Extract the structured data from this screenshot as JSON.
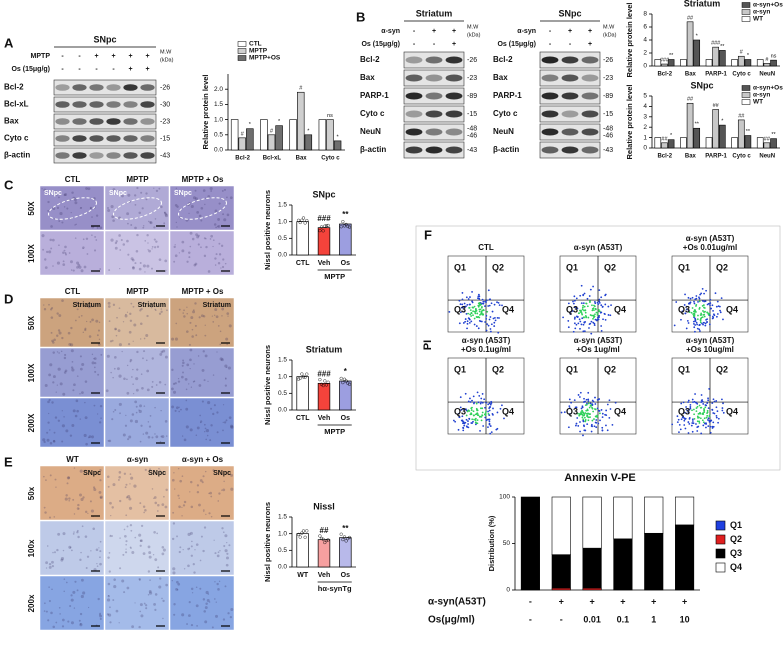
{
  "figure": {
    "panel_labels": [
      "A",
      "B",
      "C",
      "D",
      "E",
      "F"
    ],
    "blot_a": {
      "title": "SNpc",
      "conditions": [
        {
          "label": "MPTP",
          "signs": [
            "-",
            "-",
            "+",
            "+",
            "+",
            "+"
          ]
        },
        {
          "label": "Os (15μg/g)",
          "signs": [
            "-",
            "-",
            "-",
            "-",
            "+",
            "+"
          ]
        }
      ],
      "mw_header": [
        "M.W",
        "(kDa)"
      ],
      "bands": [
        {
          "label": "Bcl-2",
          "mw": [
            "-26"
          ]
        },
        {
          "label": "Bcl-xL",
          "mw": [
            "-30"
          ]
        },
        {
          "label": "Bax",
          "mw": [
            "-23"
          ]
        },
        {
          "label": "Cyto c",
          "mw": [
            "-15"
          ]
        },
        {
          "label": "β-actin",
          "mw": [
            "-43"
          ]
        }
      ]
    },
    "blot_b": [
      {
        "title": "Striatum",
        "conditions": [
          {
            "label": "α-syn",
            "signs": [
              "-",
              "+",
              "+"
            ]
          },
          {
            "label": "Os (15μg/g)",
            "signs": [
              "-",
              "-",
              "+"
            ]
          }
        ],
        "mw_header": [
          "M.W",
          "(kDa)"
        ],
        "bands": [
          {
            "label": "Bcl-2",
            "mw": [
              "-26"
            ]
          },
          {
            "label": "Bax",
            "mw": [
              "-23"
            ]
          },
          {
            "label": "PARP-1",
            "mw": [
              "-89"
            ]
          },
          {
            "label": "Cyto c",
            "mw": [
              "-15"
            ]
          },
          {
            "label": "NeuN",
            "mw": [
              "-48",
              "-46"
            ]
          },
          {
            "label": "β-actin",
            "mw": [
              "-43"
            ]
          }
        ]
      },
      {
        "title": "SNpc",
        "conditions": [
          {
            "label": "α-syn",
            "signs": [
              "-",
              "+",
              "+"
            ]
          },
          {
            "label": "Os (15μg/g)",
            "signs": [
              "-",
              "-",
              "+"
            ]
          }
        ],
        "mw_header": [
          "M.W",
          "(kDa)"
        ],
        "bands": [
          {
            "label": "Bcl-2",
            "mw": [
              "-26"
            ]
          },
          {
            "label": "Bax",
            "mw": [
              "-23"
            ]
          },
          {
            "label": "PARP-1",
            "mw": [
              "-89"
            ]
          },
          {
            "label": "Cyto c",
            "mw": [
              "-15"
            ]
          },
          {
            "label": "NeuN",
            "mw": [
              "-48",
              "-46"
            ]
          },
          {
            "label": "β-actin",
            "mw": [
              "-43"
            ]
          }
        ]
      }
    ],
    "micro": [
      {
        "columns": [
          "CTL",
          "MPTP",
          "MPTP + Os"
        ],
        "rows": [
          "50X",
          "100X"
        ],
        "region": "SNpc"
      },
      {
        "columns": [
          "CTL",
          "MPTP",
          "MPTP + Os"
        ],
        "rows": [
          "50X",
          "100X",
          "200X"
        ],
        "region": "Striatum"
      },
      {
        "columns": [
          "WT",
          "α-syn",
          "α-syn + Os"
        ],
        "rows": [
          "50x",
          "100x",
          "200x"
        ],
        "region": "SNpc"
      }
    ],
    "flow": {
      "y_label": "PI",
      "x_label": "Annexin V-PE",
      "quadrants": [
        "Q1",
        "Q2",
        "Q3",
        "Q4"
      ],
      "plots": [
        [
          "CTL"
        ],
        [
          "α-syn (A53T)"
        ],
        [
          "α-syn (A53T)",
          "+Os 0.01ug/ml"
        ],
        [
          "α-syn (A53T)",
          "+Os 0.1ug/ml"
        ],
        [
          "α-syn (A53T)",
          "+Os 1ug/ml"
        ],
        [
          "α-syn (A53T)",
          "+Os 10ug/ml"
        ]
      ]
    }
  },
  "chart_data": [
    {
      "type": "bar",
      "y_label": "Relative protein level",
      "categories": [
        "Bcl-2",
        "Bcl-xL",
        "Bax",
        "Cyto c"
      ],
      "series": [
        {
          "name": "CTL",
          "color": "#ffffff",
          "values": [
            1.0,
            1.0,
            1.0,
            1.0
          ],
          "sig": [
            null,
            null,
            null,
            null
          ]
        },
        {
          "name": "MPTP",
          "color": "#cfcfcf",
          "values": [
            0.4,
            0.5,
            1.9,
            1.0
          ],
          "sig": [
            "#",
            "#",
            "#",
            "ns"
          ]
        },
        {
          "name": "MPTP+OS",
          "color": "#6e6e6e",
          "values": [
            0.7,
            0.8,
            0.5,
            0.3
          ],
          "sig": [
            "*",
            "*",
            "*",
            "*"
          ]
        }
      ],
      "ylim": [
        0,
        2.5
      ],
      "yticks": [
        {
          "value": 0,
          "label": "0.0"
        },
        {
          "value": 0.5,
          "label": "0.5"
        },
        {
          "value": 1,
          "label": "1.0"
        },
        {
          "value": 1.5,
          "label": "1.5"
        },
        {
          "value": 2,
          "label": "2.0"
        }
      ]
    },
    {
      "type": "bar",
      "title": "Striatum",
      "y_label": "Relative protein level",
      "categories": [
        "Bcl-2",
        "Bax",
        "PARP-1",
        "Cyto c",
        "NeuN"
      ],
      "series": [
        {
          "name": "α-syn+Os",
          "color": "#555555",
          "values": [
            1.0,
            4.0,
            2.4,
            1.0,
            0.9
          ],
          "sig": [
            "**",
            "*",
            "**",
            "*",
            "ns"
          ]
        },
        {
          "name": "α-syn",
          "color": "#c8c8c8",
          "values": [
            0.3,
            6.8,
            2.9,
            1.5,
            0.4
          ],
          "sig": [
            "###",
            "##",
            "###",
            "#",
            "#"
          ]
        },
        {
          "name": "WT",
          "color": "#ffffff",
          "values": [
            1.0,
            1.0,
            1.0,
            1.0,
            1.0
          ],
          "sig": [
            null,
            null,
            null,
            null,
            null
          ]
        }
      ],
      "ylim": [
        0,
        8
      ],
      "yticks": [
        0,
        2,
        4,
        6,
        8
      ]
    },
    {
      "type": "bar",
      "title": "SNpc",
      "y_label": "Relative protein level",
      "categories": [
        "Bcl-2",
        "Bax",
        "PARP-1",
        "Cyto c",
        "NeuN"
      ],
      "series": [
        {
          "name": "α-syn+Os",
          "color": "#555555",
          "values": [
            0.8,
            1.9,
            2.2,
            1.2,
            0.9
          ],
          "sig": [
            "*",
            "**",
            "*",
            "**",
            "**"
          ]
        },
        {
          "name": "α-syn",
          "color": "#c8c8c8",
          "values": [
            0.5,
            4.3,
            3.7,
            2.7,
            0.5
          ],
          "sig": [
            "##",
            "##",
            "##",
            "##",
            "##"
          ]
        },
        {
          "name": "WT",
          "color": "#ffffff",
          "values": [
            1.0,
            1.0,
            1.0,
            1.0,
            1.0
          ],
          "sig": [
            null,
            null,
            null,
            null,
            null
          ]
        }
      ],
      "ylim": [
        0,
        5
      ],
      "yticks": [
        0,
        1,
        2,
        3,
        4,
        5
      ]
    },
    {
      "type": "bar",
      "title": "SNpc",
      "y_label": "Nissl positive neurons",
      "categories": [
        "CTL",
        "Veh",
        "Os"
      ],
      "values": [
        1.0,
        0.82,
        0.93
      ],
      "colors": [
        "#ffffff",
        "#f4433b",
        "#9c9ee0"
      ],
      "sig": [
        null,
        "###",
        "**"
      ],
      "group_label": "MPTP",
      "ylim": [
        0,
        1.5
      ],
      "yticks": [
        {
          "value": 0,
          "label": "0.0"
        },
        {
          "value": 0.5,
          "label": "0.5"
        },
        {
          "value": 1,
          "label": "1.0"
        },
        {
          "value": 1.5,
          "label": "1.5"
        }
      ]
    },
    {
      "type": "bar",
      "title": "Striatum",
      "y_label": "Nissl positive neurons",
      "categories": [
        "CTL",
        "Veh",
        "Os"
      ],
      "values": [
        1.0,
        0.8,
        0.87
      ],
      "colors": [
        "#ffffff",
        "#f4433b",
        "#9c9ee0"
      ],
      "sig": [
        null,
        "###",
        "*"
      ],
      "group_label": "MPTP",
      "ylim": [
        0,
        1.5
      ],
      "yticks": [
        {
          "value": 0,
          "label": "0.0"
        },
        {
          "value": 0.5,
          "label": "0.5"
        },
        {
          "value": 1,
          "label": "1.0"
        },
        {
          "value": 1.5,
          "label": "1.5"
        }
      ]
    },
    {
      "type": "bar",
      "title": "Nissl",
      "y_label": "Nissl positive neurons",
      "categories": [
        "WT",
        "Veh",
        "Os"
      ],
      "values": [
        1.0,
        0.82,
        0.88
      ],
      "colors": [
        "#ffffff",
        "#f7a0a0",
        "#b8b9ea"
      ],
      "sig": [
        null,
        "##",
        "**"
      ],
      "group_label": "hα-synTg",
      "ylim": [
        0,
        1.5
      ],
      "yticks": [
        {
          "value": 0,
          "label": "0.0"
        },
        {
          "value": 0.5,
          "label": "0.5"
        },
        {
          "value": 1,
          "label": "1.0"
        },
        {
          "value": 1.5,
          "label": "1.5"
        }
      ]
    },
    {
      "type": "stacked_bar",
      "y_label": "Distribution (%)",
      "row_labels": [
        "α-syn(A53T)",
        "Os(μg/ml)"
      ],
      "rows": [
        [
          "-",
          "+",
          "+",
          "+",
          "+",
          "+"
        ],
        [
          "-",
          "-",
          "0.01",
          "0.1",
          "1",
          "10"
        ]
      ],
      "series": [
        {
          "name": "Q1",
          "color": "#1f3fe0",
          "values": [
            0,
            0,
            0,
            0,
            0,
            0
          ]
        },
        {
          "name": "Q2",
          "color": "#e01f1f",
          "values": [
            0,
            2,
            2,
            0,
            0,
            0
          ]
        },
        {
          "name": "Q3",
          "color": "#000000",
          "values": [
            100,
            36,
            43,
            55,
            61,
            70
          ]
        },
        {
          "name": "Q4",
          "color": "#ffffff",
          "values": [
            0,
            62,
            55,
            45,
            39,
            30
          ]
        }
      ],
      "ylim": [
        0,
        100
      ],
      "yticks": [
        0,
        50,
        100
      ]
    }
  ]
}
